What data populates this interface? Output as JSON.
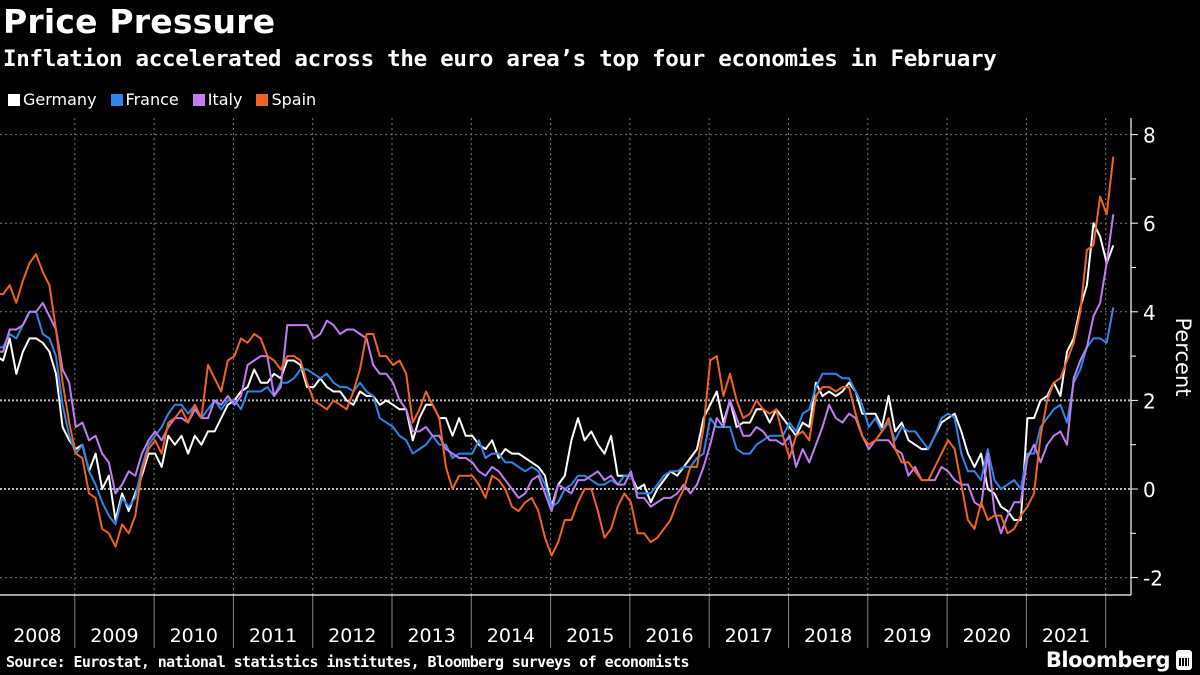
{
  "chart_data": {
    "type": "line",
    "title": "Price Pressure",
    "subtitle": "Inflation accelerated across the euro area’s top four economies in February",
    "ylabel": "Percent",
    "xlabel": "",
    "ylim": [
      -2.5,
      8.3
    ],
    "yticks": [
      "8",
      "6",
      "4",
      "2",
      "0",
      "-2"
    ],
    "x_start": "2008-01",
    "x_end": "2022-02",
    "frequency": "monthly",
    "xtick_labels": [
      "2008",
      "2009",
      "2010",
      "2011",
      "2012",
      "2013",
      "2014",
      "2015",
      "2016",
      "2017",
      "2018",
      "2019",
      "2020",
      "2021"
    ],
    "grid": true,
    "legend_position": "top-left",
    "series": [
      {
        "name": "Germany",
        "color": "#ffffff",
        "values": [
          3.0,
          2.9,
          3.4,
          2.6,
          3.1,
          3.4,
          3.4,
          3.3,
          3.1,
          2.6,
          1.4,
          1.1,
          0.9,
          1.0,
          0.4,
          0.8,
          0.0,
          0.3,
          -0.7,
          -0.1,
          -0.5,
          -0.1,
          0.3,
          0.8,
          0.8,
          0.5,
          1.2,
          1.0,
          1.2,
          0.8,
          1.2,
          1.0,
          1.3,
          1.3,
          1.6,
          1.9,
          2.0,
          2.2,
          2.3,
          2.7,
          2.4,
          2.4,
          2.6,
          2.5,
          2.9,
          2.9,
          2.8,
          2.3,
          2.3,
          2.5,
          2.3,
          2.2,
          2.2,
          2.0,
          1.9,
          2.2,
          2.1,
          2.1,
          1.9,
          2.0,
          1.9,
          1.8,
          1.8,
          1.1,
          1.6,
          1.9,
          1.9,
          1.6,
          1.6,
          1.2,
          1.6,
          1.2,
          1.2,
          1.0,
          0.9,
          1.1,
          0.7,
          0.9,
          0.8,
          0.8,
          0.7,
          0.6,
          0.5,
          0.3,
          -0.4,
          0.1,
          0.3,
          1.1,
          1.6,
          1.1,
          1.3,
          1.0,
          0.8,
          1.2,
          0.3,
          0.3,
          0.3,
          0.0,
          0.1,
          -0.3,
          0.0,
          0.2,
          0.4,
          0.3,
          0.5,
          0.7,
          0.9,
          1.6,
          1.9,
          2.2,
          1.5,
          2.0,
          1.4,
          1.5,
          1.5,
          1.8,
          1.8,
          1.5,
          1.8,
          1.6,
          1.4,
          1.2,
          1.5,
          1.4,
          2.4,
          2.1,
          2.2,
          2.1,
          2.2,
          2.4,
          2.2,
          1.7,
          1.7,
          1.7,
          1.4,
          2.1,
          1.3,
          1.5,
          1.1,
          1.0,
          0.9,
          0.9,
          1.2,
          1.5,
          1.6,
          1.7,
          1.3,
          0.8,
          0.5,
          0.8,
          0.0,
          -0.1,
          -0.4,
          -0.5,
          -0.7,
          -0.7,
          1.6,
          1.6,
          2.0,
          2.1,
          2.4,
          2.1,
          3.1,
          3.4,
          4.1,
          4.6,
          6.0,
          5.7,
          5.1,
          5.5
        ]
      },
      {
        "name": "France",
        "color": "#2e86e8",
        "values": [
          3.2,
          3.2,
          3.5,
          3.4,
          3.7,
          4.0,
          4.0,
          3.5,
          3.4,
          3.0,
          1.9,
          1.2,
          0.8,
          1.0,
          0.4,
          0.1,
          -0.3,
          -0.6,
          -0.8,
          -0.2,
          -0.4,
          -0.2,
          0.5,
          1.0,
          1.2,
          1.4,
          1.7,
          1.9,
          1.9,
          1.7,
          1.9,
          1.6,
          1.8,
          2.0,
          1.8,
          2.0,
          2.0,
          1.8,
          2.2,
          2.2,
          2.2,
          2.3,
          2.1,
          2.4,
          2.4,
          2.5,
          2.7,
          2.7,
          2.6,
          2.5,
          2.6,
          2.4,
          2.3,
          2.3,
          2.2,
          2.4,
          2.2,
          2.1,
          1.6,
          1.5,
          1.4,
          1.2,
          1.1,
          0.8,
          0.9,
          1.0,
          1.2,
          1.0,
          1.0,
          0.7,
          0.8,
          0.8,
          0.8,
          1.1,
          0.7,
          0.8,
          0.8,
          0.6,
          0.6,
          0.5,
          0.4,
          0.5,
          0.4,
          0.1,
          -0.4,
          -0.3,
          0.0,
          0.1,
          0.3,
          0.3,
          0.2,
          0.1,
          0.1,
          0.2,
          0.1,
          0.3,
          0.3,
          -0.1,
          -0.1,
          -0.1,
          0.1,
          0.3,
          0.4,
          0.4,
          0.5,
          0.5,
          0.7,
          0.8,
          1.6,
          1.4,
          1.4,
          1.4,
          0.9,
          0.8,
          0.8,
          1.0,
          1.1,
          1.2,
          1.2,
          1.2,
          1.5,
          1.3,
          1.7,
          1.8,
          2.3,
          2.6,
          2.6,
          2.6,
          2.5,
          2.5,
          2.2,
          1.9,
          1.4,
          1.6,
          1.3,
          1.5,
          1.1,
          1.4,
          1.3,
          1.3,
          1.1,
          0.9,
          1.2,
          1.6,
          1.7,
          1.6,
          0.8,
          0.4,
          0.4,
          0.2,
          0.9,
          0.2,
          0.0,
          0.1,
          0.2,
          0.0,
          0.8,
          0.8,
          1.4,
          1.6,
          1.8,
          1.9,
          1.5,
          2.4,
          2.7,
          3.2,
          3.4,
          3.4,
          3.3,
          4.1
        ]
      },
      {
        "name": "Italy",
        "color": "#c27cf2",
        "values": [
          3.1,
          3.1,
          3.6,
          3.6,
          3.7,
          4.0,
          4.0,
          4.2,
          3.9,
          3.6,
          2.7,
          2.4,
          1.4,
          1.5,
          1.1,
          1.2,
          0.8,
          0.6,
          -0.1,
          0.1,
          0.4,
          0.3,
          0.8,
          1.1,
          1.3,
          1.1,
          1.4,
          1.6,
          1.6,
          1.5,
          1.8,
          1.6,
          1.6,
          2.0,
          1.9,
          2.1,
          1.9,
          2.1,
          2.8,
          2.9,
          3.0,
          3.0,
          2.1,
          2.3,
          3.7,
          3.7,
          3.7,
          3.7,
          3.4,
          3.5,
          3.8,
          3.7,
          3.5,
          3.6,
          3.6,
          3.5,
          3.4,
          2.8,
          2.6,
          2.6,
          2.4,
          2.0,
          1.8,
          1.3,
          1.3,
          1.4,
          1.2,
          1.2,
          0.9,
          0.8,
          0.7,
          0.7,
          0.6,
          0.4,
          0.3,
          0.5,
          0.4,
          0.2,
          0.0,
          -0.2,
          -0.1,
          0.2,
          0.3,
          -0.1,
          -0.5,
          0.1,
          0.0,
          -0.1,
          0.2,
          0.2,
          0.3,
          0.4,
          0.2,
          0.3,
          0.1,
          0.1,
          0.4,
          -0.2,
          -0.2,
          -0.4,
          -0.3,
          -0.2,
          -0.2,
          -0.1,
          0.1,
          -0.1,
          0.1,
          0.5,
          1.0,
          1.6,
          1.4,
          2.0,
          1.6,
          1.2,
          1.2,
          1.4,
          1.3,
          1.1,
          1.1,
          1.0,
          1.2,
          0.5,
          0.9,
          0.6,
          1.0,
          1.4,
          1.9,
          1.6,
          1.5,
          1.7,
          1.6,
          1.2,
          0.9,
          1.1,
          1.1,
          1.1,
          0.9,
          0.8,
          0.3,
          0.5,
          0.2,
          0.2,
          0.2,
          0.5,
          0.4,
          0.2,
          0.1,
          0.1,
          -0.3,
          -0.4,
          0.8,
          -0.5,
          -1.0,
          -0.6,
          -0.3,
          -0.3,
          0.7,
          1.0,
          0.6,
          1.0,
          1.2,
          1.3,
          1.0,
          2.5,
          2.9,
          3.2,
          3.9,
          4.2,
          5.1,
          6.2
        ]
      },
      {
        "name": "Spain",
        "color": "#f0641e",
        "values": [
          4.4,
          4.4,
          4.6,
          4.2,
          4.7,
          5.1,
          5.3,
          4.9,
          4.6,
          3.6,
          2.4,
          1.5,
          0.8,
          0.7,
          -0.1,
          -0.2,
          -0.9,
          -1.0,
          -1.3,
          -0.8,
          -1.0,
          -0.6,
          0.4,
          0.9,
          1.1,
          0.8,
          1.5,
          1.6,
          1.8,
          1.5,
          1.9,
          1.6,
          2.8,
          2.5,
          2.2,
          2.9,
          3.0,
          3.4,
          3.3,
          3.5,
          3.4,
          3.0,
          2.9,
          2.7,
          3.0,
          3.0,
          2.9,
          2.4,
          2.0,
          1.9,
          1.8,
          2.0,
          1.9,
          1.8,
          2.2,
          2.7,
          3.5,
          3.5,
          3.0,
          3.0,
          2.8,
          2.9,
          2.6,
          1.5,
          1.8,
          2.2,
          1.9,
          1.6,
          0.5,
          0.0,
          0.3,
          0.3,
          0.3,
          0.1,
          -0.2,
          0.3,
          0.2,
          0.0,
          -0.4,
          -0.5,
          -0.3,
          -0.2,
          -0.5,
          -1.1,
          -1.5,
          -1.2,
          -0.7,
          -0.7,
          -0.3,
          0.0,
          0.0,
          -0.5,
          -1.1,
          -0.9,
          -0.4,
          -0.1,
          -0.3,
          -1.0,
          -1.0,
          -1.2,
          -1.1,
          -0.9,
          -0.7,
          -0.3,
          0.0,
          0.5,
          0.5,
          1.4,
          2.9,
          3.0,
          2.1,
          2.6,
          2.0,
          1.6,
          1.7,
          2.0,
          1.8,
          1.7,
          1.8,
          1.2,
          0.7,
          1.2,
          1.3,
          1.1,
          2.1,
          2.3,
          2.3,
          2.2,
          2.3,
          2.3,
          1.7,
          1.2,
          1.0,
          1.1,
          1.3,
          1.6,
          0.9,
          0.6,
          0.6,
          0.4,
          0.2,
          0.2,
          0.5,
          0.8,
          1.1,
          0.9,
          0.1,
          -0.7,
          -0.9,
          -0.3,
          -0.7,
          -0.6,
          -0.6,
          -1.0,
          -0.9,
          -0.6,
          -0.4,
          -0.1,
          1.2,
          2.0,
          2.4,
          2.5,
          2.9,
          3.3,
          4.0,
          5.4,
          5.5,
          6.6,
          6.2,
          7.5
        ]
      }
    ]
  },
  "source": "Source: Eurostat, national statistics institutes, Bloomberg surveys of economists",
  "brand": "Bloomberg"
}
